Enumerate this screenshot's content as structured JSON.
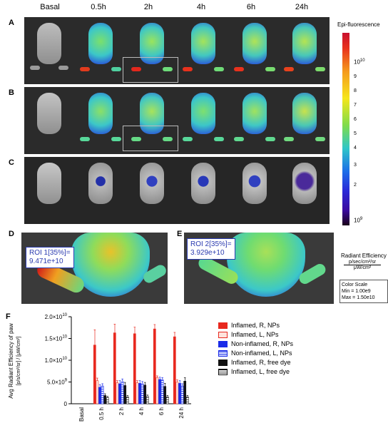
{
  "time_headers": [
    "Basal",
    "0.5h",
    "2h",
    "4h",
    "6h",
    "24h"
  ],
  "panels": [
    "A",
    "B",
    "C",
    "D",
    "E",
    "F"
  ],
  "colorbar": {
    "title": "Epi-fluorescence",
    "top_label": "10",
    "top_exp": "10",
    "bottom_label": "10",
    "bottom_exp": "9",
    "ticks": [
      "9",
      "8",
      "7",
      "6",
      "5",
      "4",
      "3",
      "2"
    ],
    "unit_title": "Radiant Efficiency",
    "unit_num": "p/sec/cm²/sr",
    "unit_den": "μW/cm²",
    "scale_title": "Color Scale",
    "scale_min": "Min = 1.00e9",
    "scale_max": "Max = 1.50e10"
  },
  "roi_d": {
    "line1": "ROI 1[35%]=",
    "line2": "9.471e+10"
  },
  "roi_e": {
    "line1": "ROI 2[35%]=",
    "line2": "3.929e+10"
  },
  "chart_data": {
    "type": "bar",
    "categories": [
      "Basal",
      "0.5 h",
      "2 h",
      "4 h",
      "6 h",
      "24 h"
    ],
    "ylabel_line1": "Avg Radiant Efficiency of paw",
    "ylabel_line2": "[p/s/cm²/sr] / [μW/cm²]",
    "ylim": [
      0,
      20000000000
    ],
    "yticks": [
      {
        "value": 0,
        "label": "0",
        "exp": ""
      },
      {
        "value": 5000000000,
        "label": "5.0×10",
        "exp": "9"
      },
      {
        "value": 10000000000,
        "label": "1.0×10",
        "exp": "10"
      },
      {
        "value": 15000000000,
        "label": "1.5×10",
        "exp": "10"
      },
      {
        "value": 20000000000,
        "label": "2.0×10",
        "exp": "10"
      }
    ],
    "series": [
      {
        "name": "Inflamed, R, NPs",
        "fill": "#e8281e",
        "hatch": "none",
        "values": [
          0,
          13500000000,
          16300000000,
          16100000000,
          17200000000,
          15400000000
        ],
        "errors": [
          0,
          3500000000,
          2000000000,
          1500000000,
          1000000000,
          1000000000
        ]
      },
      {
        "name": "Inflamed, L, NPs",
        "fill": "#fde3dc",
        "hatch": "none",
        "stroke": "#e8281e",
        "values": [
          0,
          5300000000,
          4800000000,
          4800000000,
          6000000000,
          5000000000
        ],
        "errors": [
          0,
          600000000,
          500000000,
          500000000,
          400000000,
          500000000
        ]
      },
      {
        "name": "Non-inflamed, R, NPs",
        "fill": "#1a2be8",
        "hatch": "none",
        "values": [
          0,
          3800000000,
          4600000000,
          4700000000,
          5600000000,
          4700000000
        ],
        "errors": [
          0,
          600000000,
          700000000,
          600000000,
          500000000,
          600000000
        ]
      },
      {
        "name": "Non-inflamed, L, NPs",
        "fill": "#dfe6ff",
        "hatch": "lines",
        "stroke": "#1a2be8",
        "values": [
          0,
          4100000000,
          5100000000,
          4600000000,
          5500000000,
          4100000000
        ],
        "errors": [
          0,
          500000000,
          600000000,
          500000000,
          500000000,
          500000000
        ]
      },
      {
        "name": "Inflamed, R, free dye",
        "fill": "#111111",
        "hatch": "none",
        "values": [
          0,
          1900000000,
          4200000000,
          4300000000,
          4000000000,
          5200000000
        ],
        "errors": [
          0,
          400000000,
          700000000,
          600000000,
          700000000,
          800000000
        ]
      },
      {
        "name": "Inflamed, L, free dye",
        "fill": "#ffffff",
        "hatch": "lines",
        "stroke": "#111111",
        "values": [
          0,
          1400000000,
          1600000000,
          1700000000,
          1600000000,
          1600000000
        ],
        "errors": [
          0,
          300000000,
          300000000,
          300000000,
          300000000,
          300000000
        ]
      }
    ]
  }
}
